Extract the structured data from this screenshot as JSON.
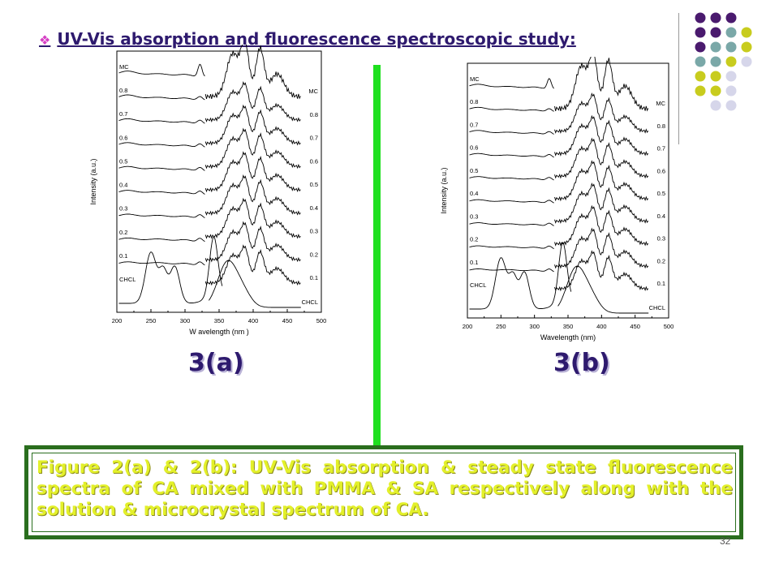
{
  "slide": {
    "title": "UV-Vis absorption and fluorescence spectroscopic study:",
    "caption": "Figure 2(a) & 2(b): UV-Vis absorption & steady state fluorescence spectra of CA mixed with PMMA & SA respectively along with the solution & microcrystal spectrum of CA.",
    "page_number": "32",
    "panel_label_a": "3(a)",
    "panel_label_b": "3(b)"
  },
  "colors": {
    "title": "#2e1a6e",
    "bullet": "#d63fc4",
    "divider": "#1fe01f",
    "caption_text": "#e3f02a",
    "caption_border": "#2a6e1e",
    "dot_purple": "#4a1a6e",
    "dot_teal": "#7aa8a8",
    "dot_yellow": "#c8cc1e",
    "dot_lavender": "#d6d6ea"
  },
  "chart_data": [
    {
      "type": "line",
      "panel": "3(a)",
      "xlabel": "W avelength (nm )",
      "ylabel": "Intensity (a.u.)",
      "xlim": [
        200,
        500
      ],
      "xticks": [
        "200",
        "250",
        "300",
        "350",
        "400",
        "450",
        "500"
      ],
      "left_labels": [
        "MC",
        "0.8",
        "0.7",
        "0.6",
        "0.5",
        "0.4",
        "0.3",
        "0.2",
        "0.1",
        "CHCL"
      ],
      "right_labels": [
        "MC",
        "0.8",
        "0.7",
        "0.6",
        "0.5",
        "0.4",
        "0.3",
        "0.2",
        "0.1",
        "CHCL"
      ]
    },
    {
      "type": "line",
      "panel": "3(b)",
      "xlabel": "Wavelength (nm)",
      "ylabel": "Intensity (a.u.)",
      "xlim": [
        200,
        500
      ],
      "xticks": [
        "200",
        "250",
        "300",
        "350",
        "400",
        "450",
        "500"
      ],
      "left_labels": [
        "MC",
        "0.8",
        "0.7",
        "0.6",
        "0.5",
        "0.4",
        "0.3",
        "0.2",
        "0.1",
        "CHCL"
      ],
      "right_labels": [
        "MC",
        "0.8",
        "0.7",
        "0.6",
        "0.5",
        "0.4",
        "0.3",
        "0.2",
        "0.1",
        "CHCL"
      ]
    }
  ]
}
